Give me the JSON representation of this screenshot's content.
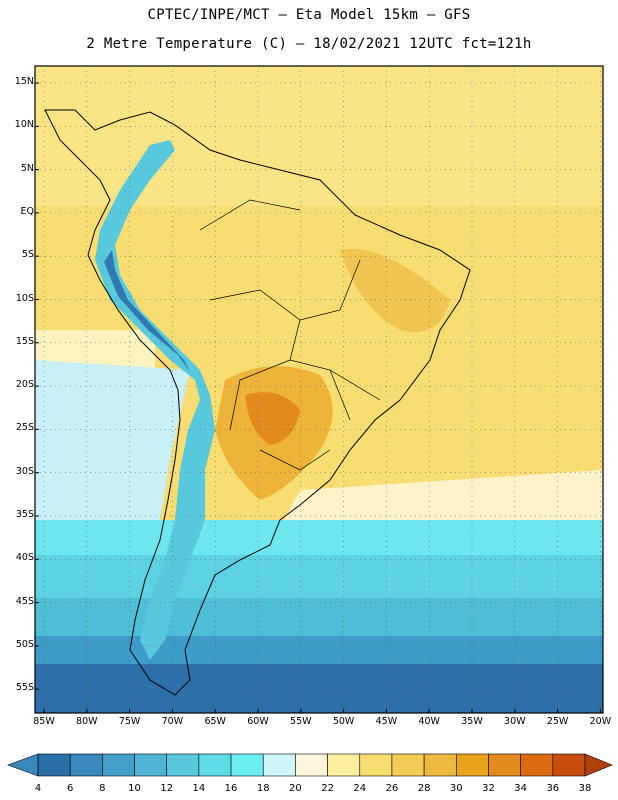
{
  "header": {
    "line1": "CPTEC/INPE/MCT –  Eta Model 15km – GFS",
    "line2": "2 Metre Temperature (C) – 18/02/2021 12UTC fct=121h"
  },
  "map": {
    "lat_ticks": [
      "15N",
      "10N",
      "5N",
      "EQ",
      "5S",
      "10S",
      "15S",
      "20S",
      "25S",
      "30S",
      "35S",
      "40S",
      "45S",
      "50S",
      "55S"
    ],
    "lon_ticks": [
      "85W",
      "80W",
      "75W",
      "70W",
      "65W",
      "60W",
      "55W",
      "50W",
      "45W",
      "40W",
      "35W",
      "30W",
      "25W",
      "20W"
    ],
    "lat_range": [
      15,
      -57
    ],
    "lon_range": [
      -85,
      -20
    ]
  },
  "colorbar": {
    "labels": [
      "4",
      "6",
      "8",
      "10",
      "12",
      "14",
      "16",
      "18",
      "20",
      "22",
      "24",
      "26",
      "28",
      "30",
      "32",
      "34",
      "36",
      "38"
    ],
    "colors": [
      "#2b6fa8",
      "#3a88bd",
      "#44a0c8",
      "#50b5d5",
      "#58c8dd",
      "#5fdbe6",
      "#6af0f0",
      "#cff6fa",
      "#fdf6dc",
      "#fcf0a0",
      "#f8de70",
      "#f3cc55",
      "#eeb940",
      "#e9a41c",
      "#e38a1c",
      "#db6c12",
      "#c94e0d"
    ],
    "end_left": "#3a88bd",
    "end_right": "#b0400c"
  }
}
